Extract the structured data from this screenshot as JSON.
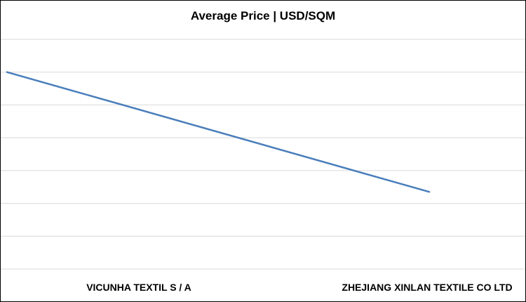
{
  "chart_data": {
    "type": "line",
    "title": "Average Price | USD/SQM",
    "xlabel": "",
    "ylabel": "",
    "categories": [
      "VICUNHA TEXTIL S / A",
      "ZHEJIANG XINLAN TEXTILE CO LTD"
    ],
    "series": [
      {
        "values": [
          6.0,
          2.35
        ]
      }
    ],
    "ylim": [
      0,
      7
    ],
    "y_ticks_shown": false,
    "grid": "horizontal",
    "legend": "none",
    "colors": {
      "line": "#4a7ebb",
      "grid": "#d9d9d9",
      "text": "#000000"
    }
  }
}
